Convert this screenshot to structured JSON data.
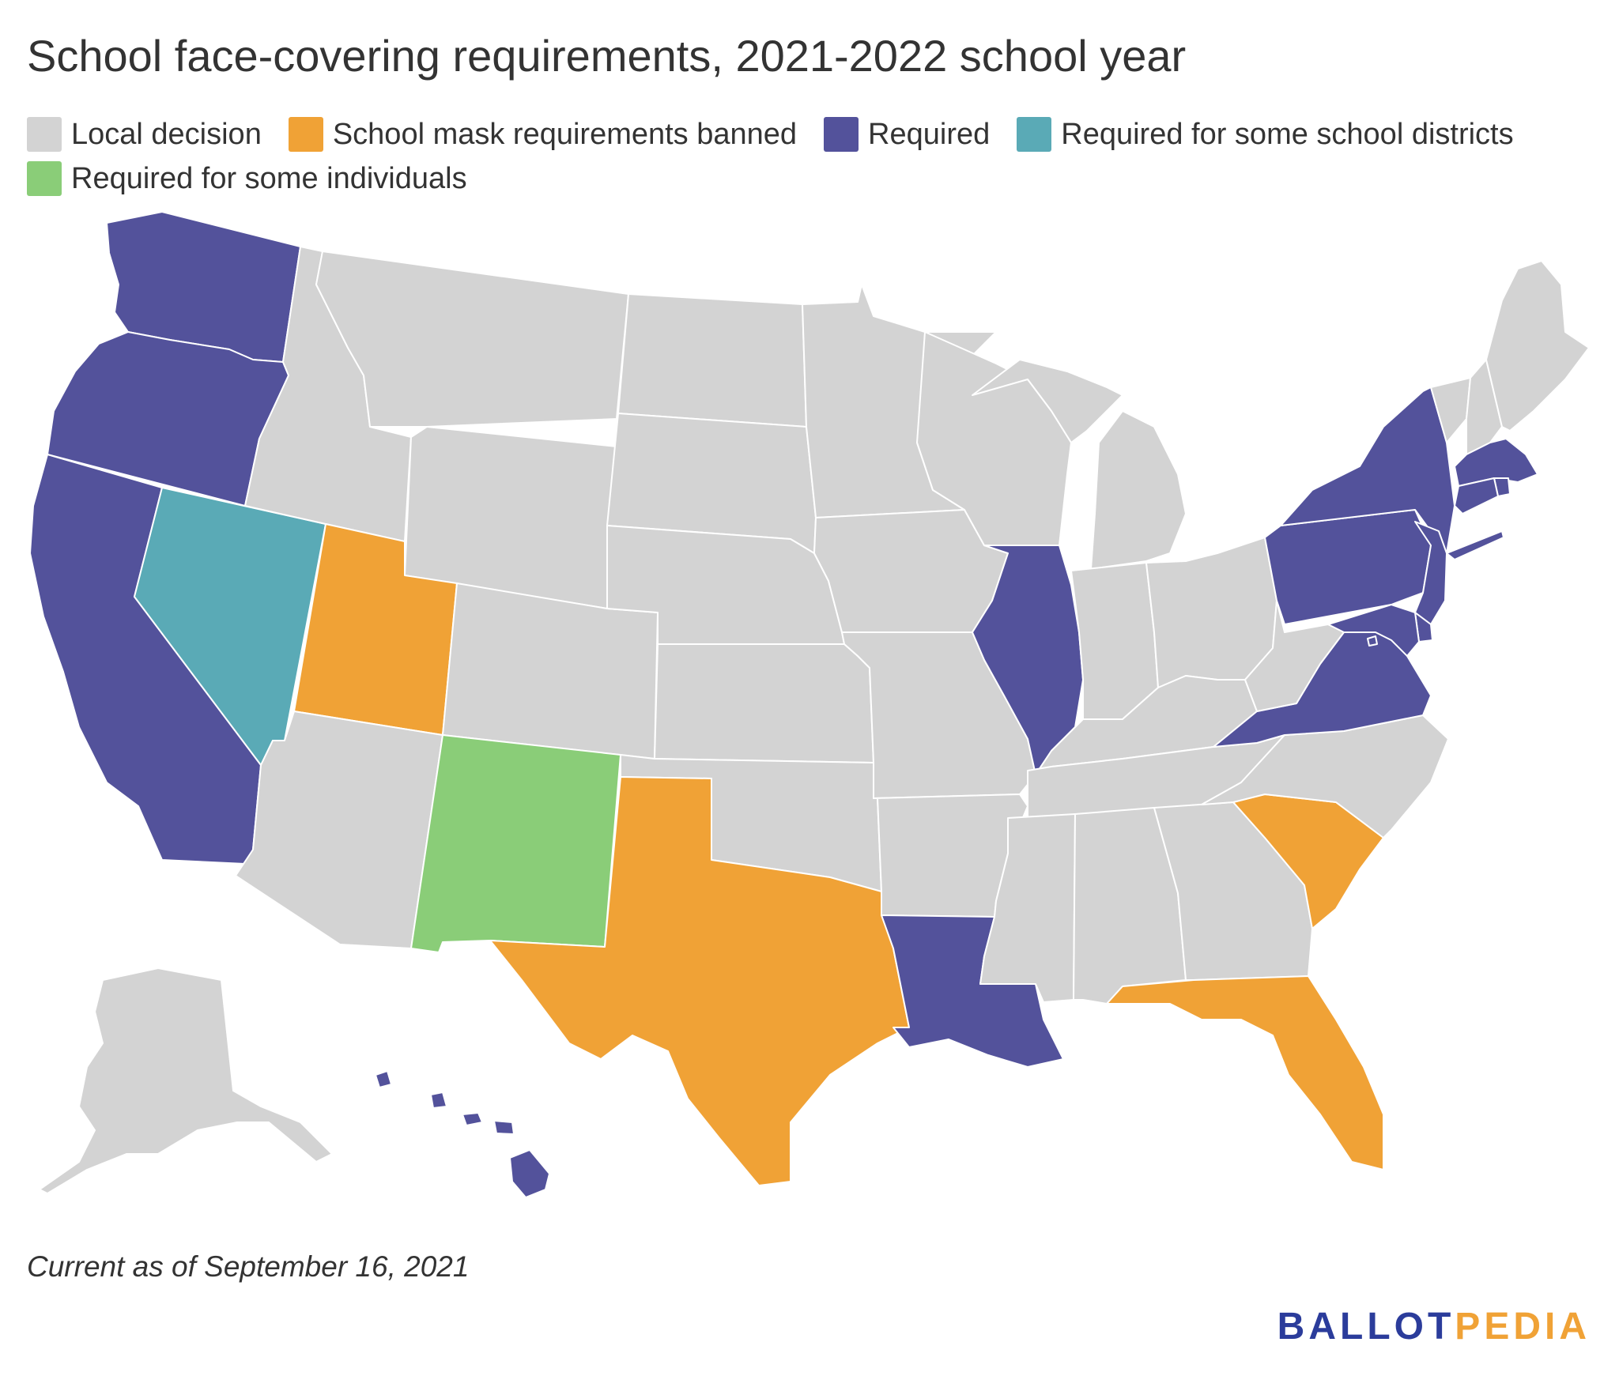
{
  "title": "School face-covering requirements, 2021-2022 school year",
  "legend": [
    {
      "label": "Local decision",
      "color": "#d3d3d3"
    },
    {
      "label": "School mask requirements banned",
      "color": "#f0a236"
    },
    {
      "label": "Required",
      "color": "#53529b"
    },
    {
      "label": "Required for some school districts",
      "color": "#5aaab6"
    },
    {
      "label": "Required for some individuals",
      "color": "#8acd78"
    }
  ],
  "map": {
    "categories": {
      "local": "#d3d3d3",
      "banned": "#f0a236",
      "required": "#53529b",
      "some_districts": "#5aaab6",
      "some_individuals": "#8acd78"
    },
    "states": [
      {
        "id": "WA",
        "category": "required"
      },
      {
        "id": "OR",
        "category": "required"
      },
      {
        "id": "CA",
        "category": "required"
      },
      {
        "id": "NV",
        "category": "some_districts"
      },
      {
        "id": "ID",
        "category": "local"
      },
      {
        "id": "MT",
        "category": "local"
      },
      {
        "id": "WY",
        "category": "local"
      },
      {
        "id": "UT",
        "category": "banned"
      },
      {
        "id": "AZ",
        "category": "local"
      },
      {
        "id": "CO",
        "category": "local"
      },
      {
        "id": "NM",
        "category": "some_individuals"
      },
      {
        "id": "ND",
        "category": "local"
      },
      {
        "id": "SD",
        "category": "local"
      },
      {
        "id": "NE",
        "category": "local"
      },
      {
        "id": "KS",
        "category": "local"
      },
      {
        "id": "OK",
        "category": "local"
      },
      {
        "id": "TX",
        "category": "banned"
      },
      {
        "id": "MN",
        "category": "local"
      },
      {
        "id": "IA",
        "category": "local"
      },
      {
        "id": "MO",
        "category": "local"
      },
      {
        "id": "AR",
        "category": "local"
      },
      {
        "id": "LA",
        "category": "required"
      },
      {
        "id": "WI",
        "category": "local"
      },
      {
        "id": "IL",
        "category": "required"
      },
      {
        "id": "MI",
        "category": "local"
      },
      {
        "id": "IN",
        "category": "local"
      },
      {
        "id": "OH",
        "category": "local"
      },
      {
        "id": "KY",
        "category": "local"
      },
      {
        "id": "TN",
        "category": "local"
      },
      {
        "id": "MS",
        "category": "local"
      },
      {
        "id": "AL",
        "category": "local"
      },
      {
        "id": "GA",
        "category": "local"
      },
      {
        "id": "FL",
        "category": "banned"
      },
      {
        "id": "SC",
        "category": "banned"
      },
      {
        "id": "NC",
        "category": "local"
      },
      {
        "id": "VA",
        "category": "required"
      },
      {
        "id": "WV",
        "category": "local"
      },
      {
        "id": "PA",
        "category": "required"
      },
      {
        "id": "NY",
        "category": "required"
      },
      {
        "id": "VT",
        "category": "local"
      },
      {
        "id": "NH",
        "category": "local"
      },
      {
        "id": "ME",
        "category": "local"
      },
      {
        "id": "MA",
        "category": "required"
      },
      {
        "id": "RI",
        "category": "required"
      },
      {
        "id": "CT",
        "category": "required"
      },
      {
        "id": "NJ",
        "category": "required"
      },
      {
        "id": "DE",
        "category": "required"
      },
      {
        "id": "MD",
        "category": "required"
      },
      {
        "id": "DC",
        "category": "required"
      },
      {
        "id": "AK",
        "category": "local"
      },
      {
        "id": "HI",
        "category": "required"
      }
    ]
  },
  "footnote": "Current as of September 16, 2021",
  "logo": {
    "part1": "BALLOT",
    "part2": "PEDIA",
    "color1": "#2b3c9b",
    "color2": "#f0a236"
  }
}
